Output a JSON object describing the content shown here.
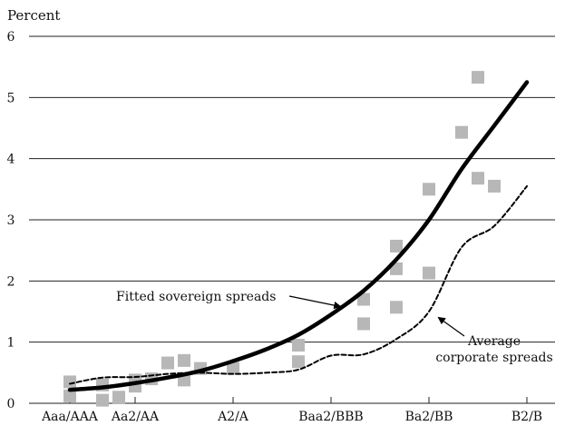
{
  "chart_data": {
    "type": "scatter",
    "ylabel": "Percent",
    "ylim": [
      0,
      6
    ],
    "yticks": [
      0,
      1,
      2,
      3,
      4,
      5,
      6
    ],
    "xlim": [
      0,
      15.5
    ],
    "xticks": [
      {
        "label": "Aaa/AAA",
        "x": 0
      },
      {
        "label": "Aa2/AA",
        "x": 2
      },
      {
        "label": "A2/A",
        "x": 5
      },
      {
        "label": "Baa2/BBB",
        "x": 8
      },
      {
        "label": "Ba2/BB",
        "x": 11
      },
      {
        "label": "B2/B",
        "x": 14
      }
    ],
    "grid": true,
    "series": [
      {
        "kind": "scatter",
        "color": "#b7b7b7",
        "points": [
          {
            "x": 0,
            "y": 0.35
          },
          {
            "x": 0,
            "y": 0.12
          },
          {
            "x": 1,
            "y": 0.3
          },
          {
            "x": 1,
            "y": 0.05
          },
          {
            "x": 1.5,
            "y": 0.1
          },
          {
            "x": 2,
            "y": 0.38
          },
          {
            "x": 2,
            "y": 0.28
          },
          {
            "x": 2.5,
            "y": 0.4
          },
          {
            "x": 3,
            "y": 0.66
          },
          {
            "x": 3.5,
            "y": 0.7
          },
          {
            "x": 3.5,
            "y": 0.38
          },
          {
            "x": 4,
            "y": 0.57
          },
          {
            "x": 5,
            "y": 0.57
          },
          {
            "x": 7,
            "y": 0.95
          },
          {
            "x": 7,
            "y": 0.68
          },
          {
            "x": 9,
            "y": 1.7
          },
          {
            "x": 9,
            "y": 1.3
          },
          {
            "x": 10,
            "y": 2.57
          },
          {
            "x": 10,
            "y": 2.2
          },
          {
            "x": 10,
            "y": 1.57
          },
          {
            "x": 11,
            "y": 3.5
          },
          {
            "x": 11,
            "y": 2.13
          },
          {
            "x": 12,
            "y": 4.43
          },
          {
            "x": 12.5,
            "y": 5.33
          },
          {
            "x": 12.5,
            "y": 3.68
          },
          {
            "x": 13,
            "y": 3.55
          }
        ]
      },
      {
        "kind": "line",
        "style": "solid",
        "color": "#000000",
        "points": [
          {
            "x": 0,
            "y": 0.22
          },
          {
            "x": 1,
            "y": 0.26
          },
          {
            "x": 2,
            "y": 0.33
          },
          {
            "x": 3,
            "y": 0.42
          },
          {
            "x": 4,
            "y": 0.53
          },
          {
            "x": 5,
            "y": 0.69
          },
          {
            "x": 6,
            "y": 0.88
          },
          {
            "x": 7,
            "y": 1.12
          },
          {
            "x": 8,
            "y": 1.45
          },
          {
            "x": 9,
            "y": 1.84
          },
          {
            "x": 10,
            "y": 2.35
          },
          {
            "x": 11,
            "y": 3.0
          },
          {
            "x": 12,
            "y": 3.83
          },
          {
            "x": 13,
            "y": 4.54
          },
          {
            "x": 14,
            "y": 5.25
          }
        ]
      },
      {
        "kind": "line",
        "style": "dashed",
        "color": "#000000",
        "points": [
          {
            "x": 0,
            "y": 0.32
          },
          {
            "x": 1,
            "y": 0.42
          },
          {
            "x": 2,
            "y": 0.43
          },
          {
            "x": 3,
            "y": 0.48
          },
          {
            "x": 4,
            "y": 0.5
          },
          {
            "x": 5,
            "y": 0.48
          },
          {
            "x": 6,
            "y": 0.5
          },
          {
            "x": 7,
            "y": 0.55
          },
          {
            "x": 8,
            "y": 0.78
          },
          {
            "x": 9,
            "y": 0.8
          },
          {
            "x": 10,
            "y": 1.05
          },
          {
            "x": 11,
            "y": 1.5
          },
          {
            "x": 12,
            "y": 2.55
          },
          {
            "x": 13,
            "y": 2.9
          },
          {
            "x": 14,
            "y": 3.55
          }
        ]
      }
    ],
    "annotations": [
      {
        "text": "Fitted sovereign spreads",
        "target": {
          "x": 8.3,
          "y": 1.58
        }
      },
      {
        "text_lines": [
          "Average",
          "corporate spreads"
        ],
        "target": {
          "x": 11.2,
          "y": 1.45
        }
      }
    ]
  }
}
